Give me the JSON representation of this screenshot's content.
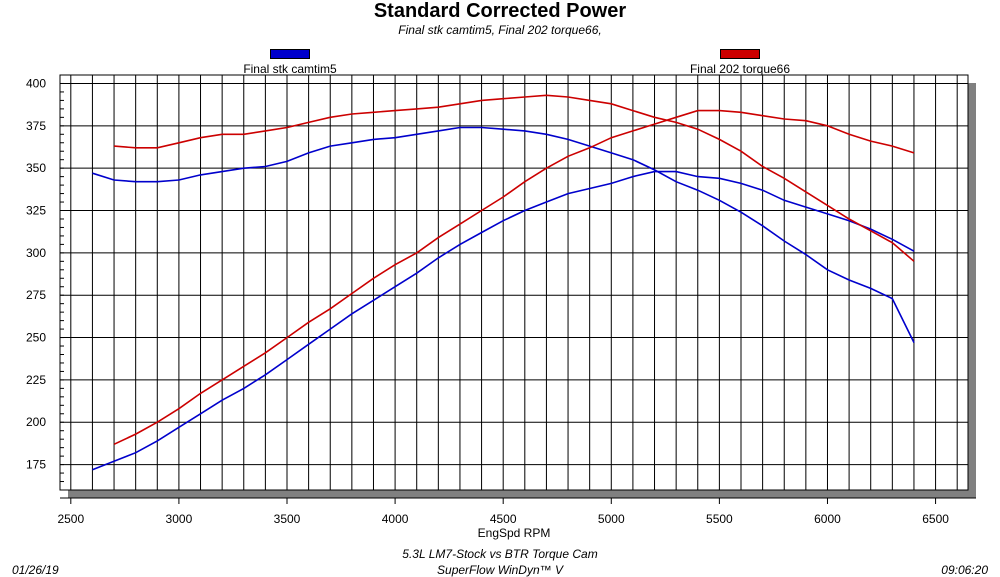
{
  "header": {
    "title": "Standard Corrected Power",
    "subtitle": "Final stk camtim5, Final 202 torque66,"
  },
  "footer": {
    "line1": "5.3L LM7-Stock vs BTR Torque Cam",
    "line2": "SuperFlow WinDyn™ V",
    "date": "01/26/19",
    "time": "09:06:20"
  },
  "chart_data": {
    "type": "line",
    "title": "Standard Corrected Power",
    "subtitle": "Final stk camtim5, Final 202 torque66,",
    "xlabel": "EngSpd RPM",
    "ylabel": "",
    "xlim": [
      2450,
      6650
    ],
    "ylim": [
      160,
      405
    ],
    "xticks": [
      2500,
      3000,
      3500,
      4000,
      4500,
      5000,
      5500,
      6000,
      6500
    ],
    "yticks": [
      175,
      200,
      225,
      250,
      275,
      300,
      325,
      350,
      375,
      400
    ],
    "grid": true,
    "legend_position": "top",
    "series": [
      {
        "name": "Final stk camtim5",
        "color": "#0000cc",
        "lines": [
          {
            "x": [
              2600,
              2700,
              2800,
              2900,
              3000,
              3100,
              3200,
              3300,
              3400,
              3500,
              3600,
              3700,
              3800,
              3900,
              4000,
              4100,
              4200,
              4300,
              4400,
              4500,
              4600,
              4700,
              4800,
              4900,
              5000,
              5100,
              5200,
              5300,
              5400,
              5500,
              5600,
              5700,
              5800,
              5900,
              6000,
              6100,
              6200,
              6300,
              6400
            ],
            "y": [
              347,
              343,
              342,
              342,
              343,
              346,
              348,
              350,
              351,
              354,
              359,
              363,
              365,
              367,
              368,
              370,
              372,
              374,
              374,
              373,
              372,
              370,
              367,
              363,
              359,
              355,
              349,
              342,
              337,
              331,
              324,
              316,
              307,
              299,
              290,
              284,
              279,
              273,
              247
            ]
          },
          {
            "x": [
              2600,
              2700,
              2800,
              2900,
              3000,
              3100,
              3200,
              3300,
              3400,
              3500,
              3600,
              3700,
              3800,
              3900,
              4000,
              4100,
              4200,
              4300,
              4400,
              4500,
              4600,
              4700,
              4800,
              4900,
              5000,
              5100,
              5200,
              5300,
              5400,
              5500,
              5600,
              5700,
              5800,
              5900,
              6000,
              6100,
              6200,
              6300,
              6400
            ],
            "y": [
              172,
              177,
              182,
              189,
              197,
              205,
              213,
              220,
              228,
              237,
              246,
              255,
              264,
              272,
              280,
              288,
              297,
              305,
              312,
              319,
              325,
              330,
              335,
              338,
              341,
              345,
              348,
              348,
              345,
              344,
              341,
              337,
              331,
              327,
              323,
              319,
              314,
              308,
              301
            ]
          }
        ]
      },
      {
        "name": "Final 202 torque66",
        "color": "#cc0000",
        "lines": [
          {
            "x": [
              2700,
              2800,
              2900,
              3000,
              3100,
              3200,
              3300,
              3400,
              3500,
              3600,
              3700,
              3800,
              3900,
              4000,
              4100,
              4200,
              4300,
              4400,
              4500,
              4600,
              4700,
              4800,
              4900,
              5000,
              5100,
              5200,
              5300,
              5400,
              5500,
              5600,
              5700,
              5800,
              5900,
              6000,
              6100,
              6200,
              6300,
              6400
            ],
            "y": [
              363,
              362,
              362,
              365,
              368,
              370,
              370,
              372,
              374,
              377,
              380,
              382,
              383,
              384,
              385,
              386,
              388,
              390,
              391,
              392,
              393,
              392,
              390,
              388,
              384,
              380,
              377,
              373,
              367,
              360,
              351,
              344,
              336,
              328,
              320,
              313,
              306,
              295
            ]
          },
          {
            "x": [
              2700,
              2800,
              2900,
              3000,
              3100,
              3200,
              3300,
              3400,
              3500,
              3600,
              3700,
              3800,
              3900,
              4000,
              4100,
              4200,
              4300,
              4400,
              4500,
              4600,
              4700,
              4800,
              4900,
              5000,
              5100,
              5200,
              5300,
              5400,
              5500,
              5600,
              5700,
              5800,
              5900,
              6000,
              6100,
              6200,
              6300,
              6400
            ],
            "y": [
              187,
              193,
              200,
              208,
              217,
              225,
              233,
              241,
              250,
              259,
              267,
              276,
              285,
              293,
              300,
              309,
              317,
              325,
              333,
              342,
              350,
              357,
              362,
              368,
              372,
              376,
              380,
              384,
              384,
              383,
              381,
              379,
              378,
              375,
              370,
              366,
              363,
              359
            ]
          }
        ]
      }
    ]
  }
}
